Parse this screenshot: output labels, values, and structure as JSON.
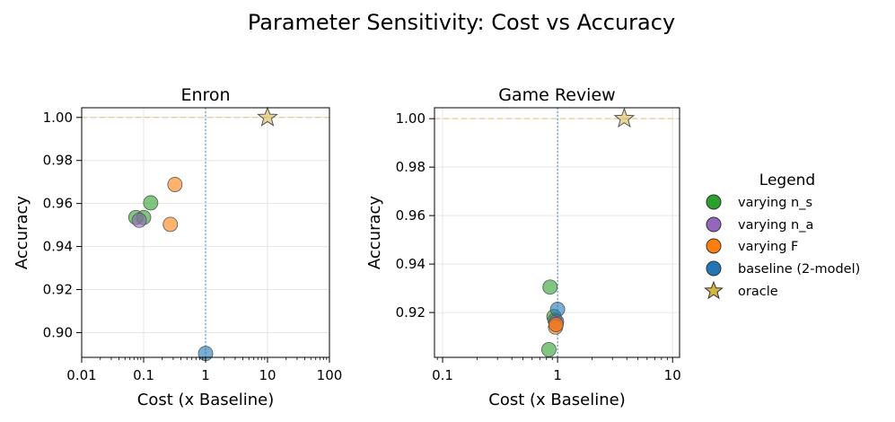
{
  "suptitle": "Parameter Sensitivity: Cost vs Accuracy",
  "colors": {
    "varying_n_s": "#2ca02c",
    "varying_n_a": "#9467bd",
    "varying_F": "#ff7f0e",
    "baseline": "#1f77b4",
    "oracle": "#d4b545",
    "grid": "#e6e6e6",
    "ref_h": "#e8c98a",
    "ref_v": "#5b9bd5"
  },
  "legend": {
    "title": "Legend",
    "entries": [
      {
        "label": "varying n_s",
        "marker": "circle",
        "color": "#2ca02c"
      },
      {
        "label": "varying n_a",
        "marker": "circle",
        "color": "#9467bd"
      },
      {
        "label": "varying F",
        "marker": "circle",
        "color": "#ff7f0e"
      },
      {
        "label": "baseline (2-model)",
        "marker": "circle",
        "color": "#1f77b4"
      },
      {
        "label": "oracle",
        "marker": "star",
        "color": "#d4b545"
      }
    ]
  },
  "chart_data": [
    {
      "type": "scatter",
      "title": "Enron",
      "xlabel": "Cost (x Baseline)",
      "ylabel": "Accuracy",
      "xscale": "log",
      "xlim": [
        0.01,
        100
      ],
      "ylim": [
        0.8885,
        1.0045
      ],
      "xticks": [
        0.01,
        0.1,
        1,
        10,
        100
      ],
      "xticklabels": [
        "0.01",
        "0.1",
        "1",
        "10",
        "100"
      ],
      "yticks": [
        0.9,
        0.92,
        0.94,
        0.96,
        0.98,
        1.0
      ],
      "yticklabels": [
        "0.90",
        "0.92",
        "0.94",
        "0.96",
        "0.98",
        "1.00"
      ],
      "reference_lines": {
        "horizontal_y": 1.0,
        "vertical_x": 1
      },
      "series": [
        {
          "name": "varying n_s",
          "points": [
            [
              0.075,
              0.9535
            ],
            [
              0.1,
              0.9535
            ],
            [
              0.13,
              0.9603
            ]
          ]
        },
        {
          "name": "varying n_a",
          "points": [
            [
              0.085,
              0.9522
            ]
          ]
        },
        {
          "name": "varying F",
          "points": [
            [
              0.27,
              0.9503
            ],
            [
              0.32,
              0.9688
            ]
          ]
        },
        {
          "name": "baseline (2-model)",
          "points": [
            [
              1.0,
              0.8903
            ]
          ]
        },
        {
          "name": "oracle",
          "points": [
            [
              10.0,
              1.0
            ]
          ]
        }
      ]
    },
    {
      "type": "scatter",
      "title": "Game Review",
      "xlabel": "Cost (x Baseline)",
      "ylabel": "Accuracy",
      "xscale": "log",
      "xlim": [
        0.085,
        11.5
      ],
      "ylim": [
        0.9015,
        1.0045
      ],
      "xticks": [
        0.1,
        1,
        10
      ],
      "xticklabels": [
        "0.1",
        "1",
        "10"
      ],
      "yticks": [
        0.92,
        0.94,
        0.96,
        0.98,
        1.0
      ],
      "yticklabels": [
        "0.92",
        "0.94",
        "0.96",
        "0.98",
        "1.00"
      ],
      "reference_lines": {
        "horizontal_y": 1.0,
        "vertical_x": 1
      },
      "series": [
        {
          "name": "varying n_s",
          "points": [
            [
              0.84,
              0.9047
            ],
            [
              0.86,
              0.9305
            ],
            [
              0.93,
              0.9183
            ],
            [
              0.95,
              0.9168
            ]
          ]
        },
        {
          "name": "varying n_a",
          "points": [
            [
              0.97,
              0.9152
            ],
            [
              0.98,
              0.9162
            ]
          ]
        },
        {
          "name": "varying F",
          "points": [
            [
              0.96,
              0.914
            ],
            [
              0.97,
              0.915
            ]
          ]
        },
        {
          "name": "baseline (2-model)",
          "points": [
            [
              1.0,
              0.9213
            ]
          ]
        },
        {
          "name": "oracle",
          "points": [
            [
              3.8,
              1.0
            ]
          ]
        }
      ]
    }
  ]
}
